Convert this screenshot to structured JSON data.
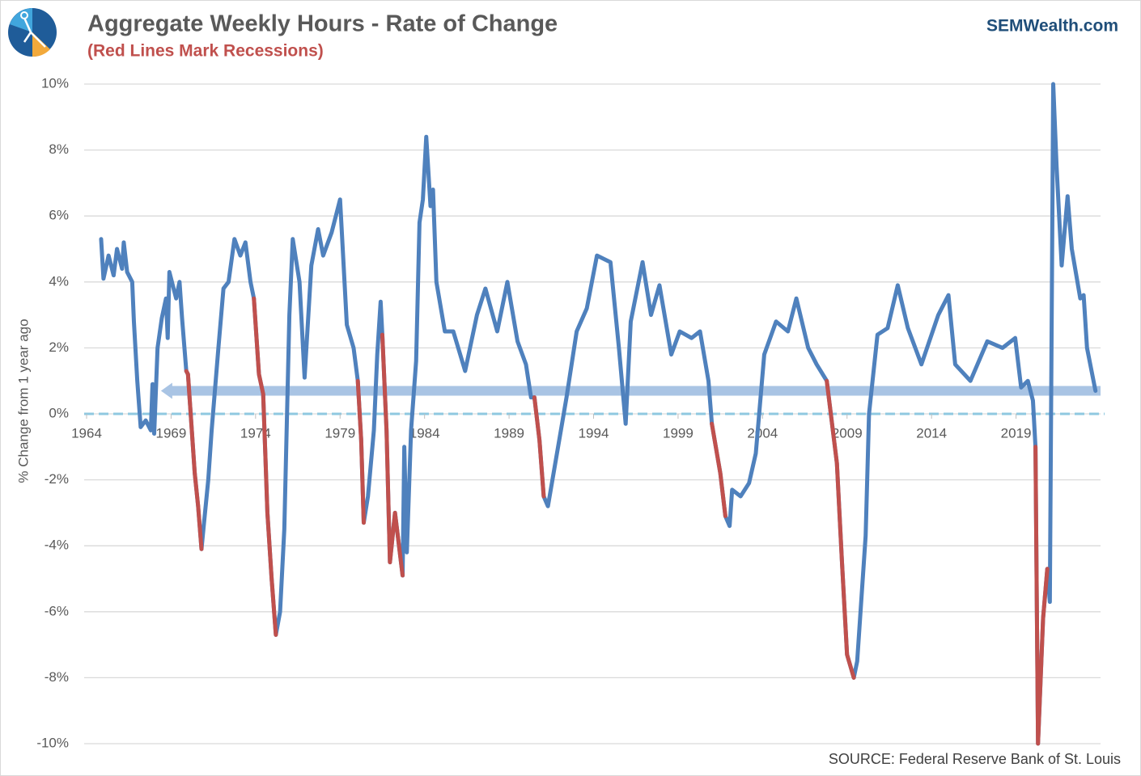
{
  "chart_data": {
    "type": "line",
    "title": "Aggregate Weekly Hours - Rate of Change",
    "subtitle": "(Red Lines Mark Recessions)",
    "brand": "SEMWealth.com",
    "source": "SOURCE:  Federal Reserve Bank of St. Louis",
    "y_label": "% Change from 1 year ago",
    "xlim": [
      1964,
      2024
    ],
    "xticks": [
      1964,
      1969,
      1974,
      1979,
      1984,
      1989,
      1994,
      1999,
      2004,
      2009,
      2014,
      2019
    ],
    "ylim": [
      -10,
      10
    ],
    "yticks": [
      {
        "value": -10,
        "label": "-10%"
      },
      {
        "value": -8,
        "label": "-8%"
      },
      {
        "value": -6,
        "label": "-6%"
      },
      {
        "value": -4,
        "label": "-4%"
      },
      {
        "value": -2,
        "label": "-2%"
      },
      {
        "value": 0,
        "label": "0%"
      },
      {
        "value": 2,
        "label": "2%"
      },
      {
        "value": 4,
        "label": "4%"
      },
      {
        "value": 6,
        "label": "6%"
      },
      {
        "value": 8,
        "label": "8%"
      },
      {
        "value": 10,
        "label": "10%"
      }
    ],
    "grid": true,
    "arrow": {
      "y": 0.7,
      "from": 2024,
      "to": 1968.4,
      "color": "#a9c4e4"
    },
    "x": [
      1964.86,
      1965.0,
      1965.3,
      1965.6,
      1965.8,
      1966.1,
      1966.2,
      1966.4,
      1966.7,
      1966.8,
      1967.0,
      1967.2,
      1967.5,
      1967.8,
      1967.9,
      1968.0,
      1968.2,
      1968.45,
      1968.7,
      1968.8,
      1968.9,
      1969.3,
      1969.5,
      1969.65,
      1969.9,
      1970.0,
      1970.4,
      1970.6,
      1970.8,
      1970.95,
      1971.2,
      1971.4,
      1971.8,
      1972.1,
      1972.4,
      1972.75,
      1973.1,
      1973.4,
      1973.7,
      1973.9,
      1974.2,
      1974.45,
      1974.7,
      1974.95,
      1975.2,
      1975.45,
      1975.7,
      1976.0,
      1976.2,
      1976.6,
      1976.9,
      1977.3,
      1977.7,
      1978.0,
      1978.5,
      1979.0,
      1979.4,
      1979.8,
      1980.05,
      1980.25,
      1980.4,
      1980.65,
      1981.0,
      1981.2,
      1981.4,
      1981.5,
      1981.75,
      1981.95,
      1982.25,
      1982.7,
      1982.8,
      1982.95,
      1983.2,
      1983.5,
      1983.7,
      1983.9,
      1984.1,
      1984.35,
      1984.5,
      1984.7,
      1985.2,
      1985.7,
      1986.4,
      1987.1,
      1987.6,
      1988.3,
      1988.9,
      1989.5,
      1990.0,
      1990.3,
      1990.5,
      1990.8,
      1991.05,
      1991.3,
      1991.9,
      1992.4,
      1993.0,
      1993.6,
      1994.2,
      1995.0,
      1995.5,
      1995.9,
      1996.2,
      1996.9,
      1997.4,
      1997.9,
      1998.6,
      1999.1,
      1999.8,
      2000.3,
      2000.8,
      2001.0,
      2001.5,
      2001.8,
      2002.05,
      2002.2,
      2002.7,
      2003.2,
      2003.6,
      2004.1,
      2004.8,
      2005.5,
      2006.0,
      2006.7,
      2007.2,
      2007.8,
      2008.4,
      2008.7,
      2009.0,
      2009.4,
      2009.6,
      2010.1,
      2010.3,
      2010.8,
      2011.4,
      2012.0,
      2012.6,
      2013.4,
      2014.4,
      2015.0,
      2015.4,
      2016.3,
      2017.3,
      2018.2,
      2018.95,
      2019.3,
      2019.7,
      2020.0,
      2020.15,
      2020.3,
      2020.6,
      2020.85,
      2021.0,
      2021.2,
      2021.4,
      2021.7,
      2022.05,
      2022.3,
      2022.8,
      2023.0,
      2023.2,
      2023.7
    ],
    "series": [
      {
        "name": "Aggregate Weekly Hours",
        "color": "#4f81bd",
        "values": [
          5.3,
          4.1,
          4.8,
          4.2,
          5.0,
          4.4,
          5.2,
          4.3,
          4.0,
          2.8,
          1.0,
          -0.4,
          -0.2,
          -0.5,
          0.9,
          -0.6,
          2.0,
          2.9,
          3.5,
          2.3,
          4.3,
          3.5,
          4.0,
          2.9,
          1.3,
          1.2,
          -1.8,
          -2.8,
          -4.1,
          -3.3,
          -2.0,
          -0.5,
          2.0,
          3.8,
          4.0,
          5.3,
          4.8,
          5.2,
          4.0,
          3.5,
          1.2,
          0.6,
          -3.0,
          -5.0,
          -6.7,
          -6.0,
          -3.5,
          3.0,
          5.3,
          4.0,
          1.1,
          4.5,
          5.6,
          4.8,
          5.5,
          6.5,
          2.7,
          2.0,
          1.0,
          -0.8,
          -3.3,
          -2.5,
          -0.5,
          1.8,
          3.4,
          2.4,
          -0.5,
          -4.5,
          -3.0,
          -4.9,
          -1.0,
          -4.2,
          -0.5,
          1.6,
          5.8,
          6.5,
          8.4,
          6.3,
          6.8,
          4.0,
          2.5,
          2.5,
          1.3,
          3.0,
          3.8,
          2.5,
          4.0,
          2.2,
          1.5,
          0.5,
          0.5,
          -0.8,
          -2.5,
          -2.8,
          -1.0,
          0.5,
          2.5,
          3.2,
          4.8,
          4.6,
          2.0,
          -0.3,
          2.8,
          4.6,
          3.0,
          3.9,
          1.8,
          2.5,
          2.3,
          2.5,
          1.0,
          -0.3,
          -1.8,
          -3.1,
          -3.4,
          -2.3,
          -2.5,
          -2.1,
          -1.2,
          1.8,
          2.8,
          2.5,
          3.5,
          2.0,
          1.5,
          1.0,
          -1.5,
          -4.5,
          -7.3,
          -8.0,
          -7.5,
          -3.7,
          0.0,
          2.4,
          2.6,
          3.9,
          2.6,
          1.5,
          3.0,
          3.6,
          1.5,
          1.0,
          2.2,
          2.0,
          2.3,
          0.8,
          1.0,
          0.4,
          -1.0,
          -10.0,
          -6.2,
          -4.7,
          -5.7,
          10.0,
          7.5,
          4.5,
          6.6,
          5.0,
          3.5,
          3.6,
          2.0,
          0.7
        ]
      },
      {
        "name": "Recessions",
        "color": "#c0504d",
        "values": [
          null,
          null,
          null,
          null,
          null,
          null,
          null,
          null,
          null,
          null,
          null,
          null,
          null,
          null,
          null,
          null,
          null,
          null,
          null,
          null,
          null,
          null,
          null,
          null,
          1.3,
          1.2,
          -1.8,
          -2.8,
          -4.1,
          null,
          null,
          null,
          null,
          null,
          null,
          null,
          null,
          null,
          null,
          3.5,
          1.2,
          0.6,
          -3.0,
          -5.0,
          -6.7,
          null,
          null,
          null,
          null,
          null,
          null,
          null,
          null,
          null,
          null,
          null,
          null,
          null,
          1.0,
          -0.8,
          -3.3,
          null,
          null,
          null,
          null,
          2.4,
          -0.5,
          -4.5,
          -3.0,
          -4.9,
          null,
          null,
          null,
          null,
          null,
          null,
          null,
          null,
          null,
          null,
          null,
          null,
          null,
          null,
          null,
          null,
          null,
          null,
          null,
          null,
          0.5,
          -0.8,
          -2.5,
          null,
          null,
          null,
          null,
          null,
          null,
          null,
          null,
          null,
          null,
          null,
          null,
          null,
          null,
          null,
          null,
          null,
          null,
          -0.3,
          -1.8,
          -3.1,
          null,
          null,
          null,
          null,
          null,
          null,
          null,
          null,
          null,
          null,
          null,
          1.0,
          -1.5,
          -4.5,
          -7.3,
          -8.0,
          null,
          null,
          null,
          null,
          null,
          null,
          null,
          null,
          null,
          null,
          null,
          null,
          null,
          null,
          null,
          null,
          null,
          null,
          -1.0,
          -10.0,
          -6.2,
          -4.7,
          null,
          null,
          null,
          null,
          null,
          null,
          null,
          null,
          null,
          null
        ]
      }
    ]
  }
}
